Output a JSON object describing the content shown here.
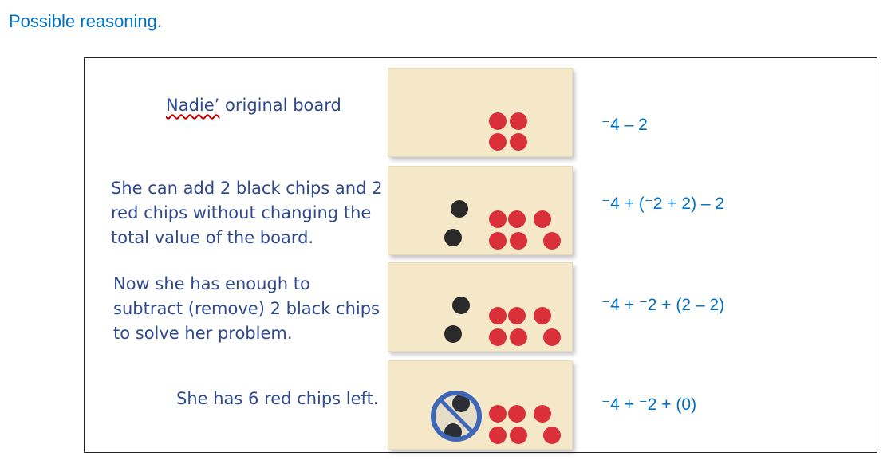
{
  "heading": "Possible reasoning.",
  "rows": [
    {
      "text_name": "Nadie’",
      "text_rest": " original board",
      "expression": "⁻4 – 2"
    },
    {
      "lines": [
        "She can add 2 black chips and 2",
        "red chips without changing the",
        "total value of the board."
      ],
      "expression": "⁻4 + (⁻2 + 2) – 2"
    },
    {
      "lines": [
        "Now she has enough to",
        "subtract (remove) 2 black chips",
        "to solve her problem."
      ],
      "expression": "⁻4 + ⁻2 + (2 – 2)"
    },
    {
      "lines": [
        "She has 6 red chips left."
      ],
      "expression": "⁻4 + ⁻2 + (0)"
    }
  ],
  "colors": {
    "heading": "#0070c0",
    "text": "#2f4a8c",
    "board": "#f4e8c8",
    "red_chip": "#d9303a",
    "black_chip": "#2a2a2a",
    "no_sign": "#3f67b8"
  },
  "icons": {
    "crossed_out": "no-sign-icon"
  }
}
